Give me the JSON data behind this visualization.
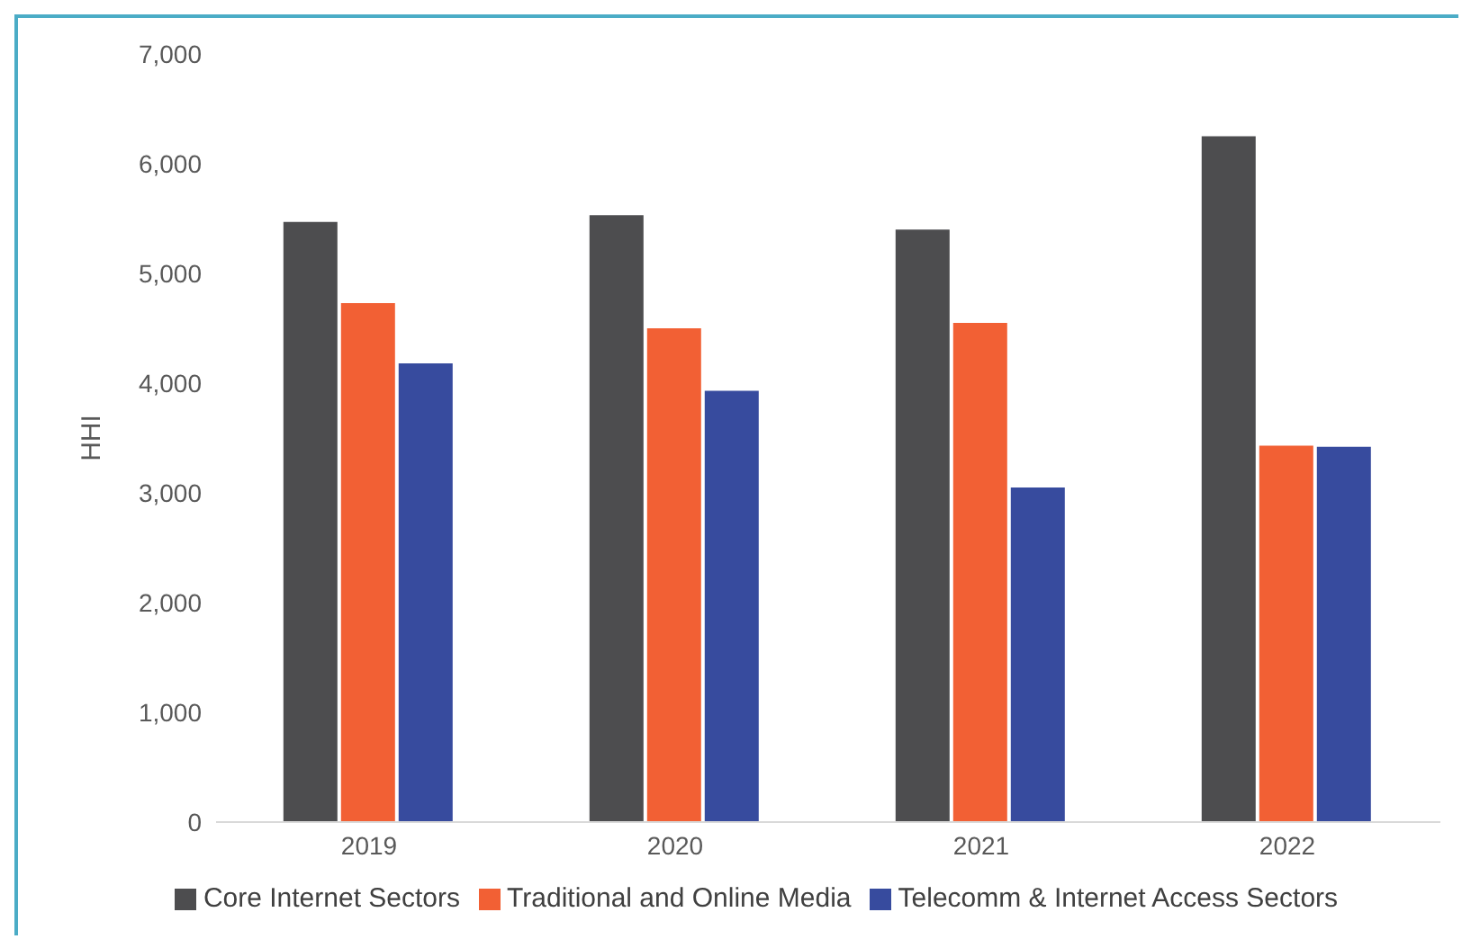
{
  "chart_data": {
    "type": "bar",
    "ylabel": "HHI",
    "categories": [
      "2019",
      "2020",
      "2021",
      "2022"
    ],
    "series": [
      {
        "name": "Core Internet Sectors",
        "color": "#4d4d4f",
        "values": [
          5470,
          5530,
          5400,
          6250
        ]
      },
      {
        "name": "Traditional and Online Media",
        "color": "#f26034",
        "values": [
          4730,
          4500,
          4550,
          3430
        ]
      },
      {
        "name": "Telecomm & Internet Access Sectors",
        "color": "#374b9e",
        "values": [
          4180,
          3930,
          3050,
          3420
        ]
      }
    ],
    "ylim": [
      0,
      7000
    ],
    "yticks": [
      0,
      {
        "value": 1000,
        "label": "1,000"
      },
      {
        "value": 2000,
        "label": "2,000"
      },
      {
        "value": 3000,
        "label": "3,000"
      },
      {
        "value": 4000,
        "label": "4,000"
      },
      {
        "value": 5000,
        "label": "5,000"
      },
      {
        "value": 6000,
        "label": "6,000"
      },
      {
        "value": 7000,
        "label": "7,000"
      }
    ],
    "grid": false,
    "legend": "bottom"
  }
}
